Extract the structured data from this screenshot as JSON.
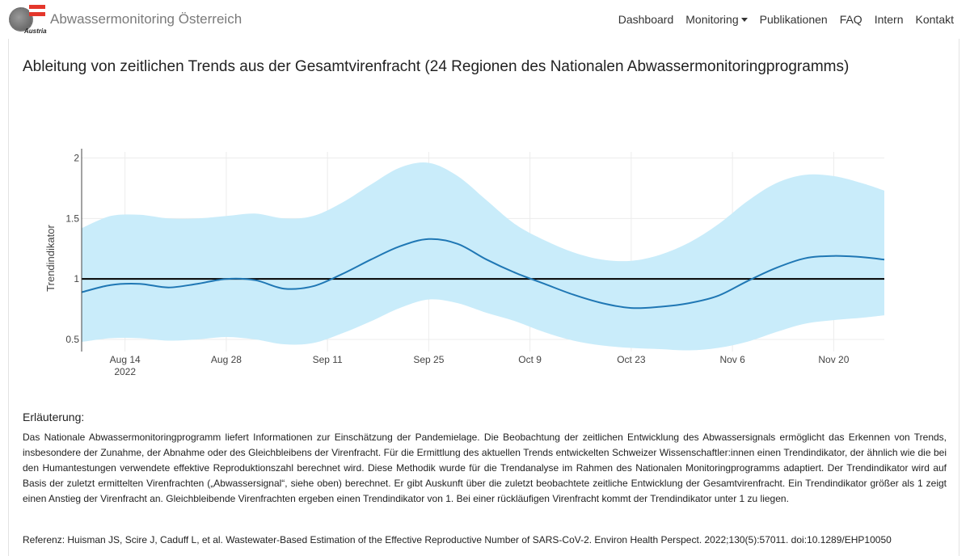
{
  "navbar": {
    "brand_title": "Abwassermonitoring Österreich",
    "logo_text": "Austria",
    "items": [
      {
        "label": "Dashboard"
      },
      {
        "label": "Monitoring",
        "dropdown": true
      },
      {
        "label": "Publikationen"
      },
      {
        "label": "FAQ"
      },
      {
        "label": "Intern"
      },
      {
        "label": "Kontakt"
      }
    ]
  },
  "colors": {
    "band": "#c9ecfa",
    "line": "#1f77b4",
    "reference": "#000000"
  },
  "chart_data": {
    "type": "area",
    "title": "Ableitung von zeitlichen Trends aus der Gesamtvirenfracht (24 Regionen des Nationalen Abwassermonitoringprogramms)",
    "xlabel": "",
    "ylabel": "Trendindikator",
    "xlim": [
      "2022-08-08",
      "2022-11-27"
    ],
    "ylim": [
      0.4,
      2.05
    ],
    "x_ticks": [
      "2022-08-14",
      "2022-08-28",
      "2022-09-11",
      "2022-09-25",
      "2022-10-09",
      "2022-10-23",
      "2022-11-06",
      "2022-11-20"
    ],
    "x_tick_labels": [
      "Aug 14",
      "Aug 28",
      "Sep 11",
      "Sep 25",
      "Oct 9",
      "Oct 23",
      "Nov 6",
      "Nov 20"
    ],
    "x_year_label": "2022",
    "y_ticks": [
      0.5,
      1,
      1.5,
      2
    ],
    "y_tick_labels": [
      "0.5",
      "1",
      "1.5",
      "2"
    ],
    "grid": true,
    "reference_line": 1,
    "x": [
      "2022-08-08",
      "2022-08-12",
      "2022-08-16",
      "2022-08-20",
      "2022-08-24",
      "2022-08-28",
      "2022-09-01",
      "2022-09-05",
      "2022-09-09",
      "2022-09-13",
      "2022-09-17",
      "2022-09-21",
      "2022-09-25",
      "2022-09-29",
      "2022-10-03",
      "2022-10-07",
      "2022-10-11",
      "2022-10-15",
      "2022-10-19",
      "2022-10-23",
      "2022-10-27",
      "2022-10-31",
      "2022-11-04",
      "2022-11-08",
      "2022-11-12",
      "2022-11-16",
      "2022-11-20",
      "2022-11-24",
      "2022-11-27"
    ],
    "series": [
      {
        "values": [
          0.89,
          0.95,
          0.96,
          0.93,
          0.96,
          1.0,
          0.99,
          0.92,
          0.94,
          1.04,
          1.16,
          1.27,
          1.33,
          1.29,
          1.16,
          1.05,
          0.96,
          0.87,
          0.8,
          0.76,
          0.77,
          0.8,
          0.86,
          0.98,
          1.09,
          1.17,
          1.19,
          1.18,
          1.16
        ]
      }
    ],
    "band": {
      "upper": [
        1.42,
        1.52,
        1.53,
        1.5,
        1.5,
        1.52,
        1.54,
        1.5,
        1.52,
        1.63,
        1.78,
        1.92,
        1.96,
        1.85,
        1.65,
        1.45,
        1.32,
        1.22,
        1.16,
        1.15,
        1.2,
        1.3,
        1.45,
        1.64,
        1.79,
        1.86,
        1.85,
        1.79,
        1.73
      ],
      "lower": [
        0.48,
        0.51,
        0.51,
        0.49,
        0.5,
        0.52,
        0.5,
        0.46,
        0.47,
        0.55,
        0.65,
        0.76,
        0.83,
        0.8,
        0.72,
        0.65,
        0.56,
        0.49,
        0.45,
        0.43,
        0.42,
        0.41,
        0.43,
        0.48,
        0.56,
        0.63,
        0.66,
        0.68,
        0.7
      ]
    }
  },
  "explanation": {
    "heading": "Erläuterung:",
    "text": "Das Nationale Abwassermonitoringprogramm liefert Informationen zur Einschätzung der Pandemielage. Die Beobachtung der zeitlichen Entwicklung des Abwassersignals ermöglicht das Erkennen von Trends, insbesondere der Zunahme, der Abnahme oder des Gleichbleibens der Virenfracht. Für die Ermittlung des aktuellen Trends entwickelten Schweizer Wissenschaftler:innen einen Trendindikator, der ähnlich wie die bei den Humantestungen verwendete effektive Reproduktionszahl berechnet wird. Diese Methodik wurde für die Trendanalyse im Rahmen des Nationalen Monitoringprogramms adaptiert. Der Trendindikator wird auf Basis der zuletzt ermittelten Virenfrachten („Abwassersignal“, siehe oben) berechnet. Er gibt Auskunft über die zuletzt beobachtete zeitliche Entwicklung der Gesamtvirenfracht. Ein Trendindikator größer als 1 zeigt einen Anstieg der Virenfracht an. Gleichbleibende Virenfrachten ergeben einen Trendindikator von 1. Bei einer rückläufigen Virenfracht kommt der Trendindikator unter 1 zu liegen.",
    "reference": "Referenz: Huisman JS, Scire J, Caduff L, et al. Wastewater-Based Estimation of the Effective Reproductive Number of SARS-CoV-2. Environ Health Perspect. 2022;130(5):57011. doi:10.1289/EHP10050"
  }
}
